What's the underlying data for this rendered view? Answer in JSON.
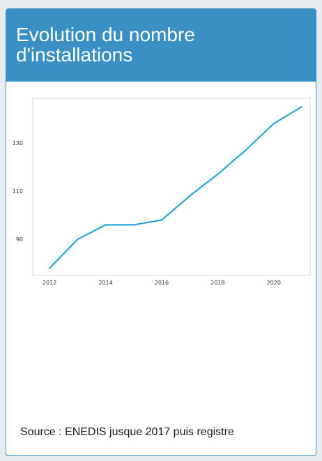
{
  "card": {
    "title": "Evolution du nombre d'installations",
    "source": "Source : ENEDIS jusque 2017 puis registre",
    "accent": "#3a8fc4"
  },
  "chart_data": {
    "type": "line",
    "title": "",
    "xlabel": "",
    "ylabel": "",
    "x": [
      2012,
      2013,
      2014,
      2015,
      2016,
      2017,
      2018,
      2019,
      2020,
      2021
    ],
    "series": [
      {
        "values": [
          78,
          90,
          96,
          96,
          98,
          108,
          117,
          127,
          138,
          145
        ],
        "color": "#29a8d6"
      }
    ],
    "xticks": [
      2012,
      2014,
      2016,
      2018,
      2020
    ],
    "yticks": [
      90,
      110,
      130
    ],
    "xlim": [
      2011.4,
      2021.3
    ],
    "ylim": [
      75,
      148.5
    ],
    "grid": false,
    "legend": "none"
  }
}
